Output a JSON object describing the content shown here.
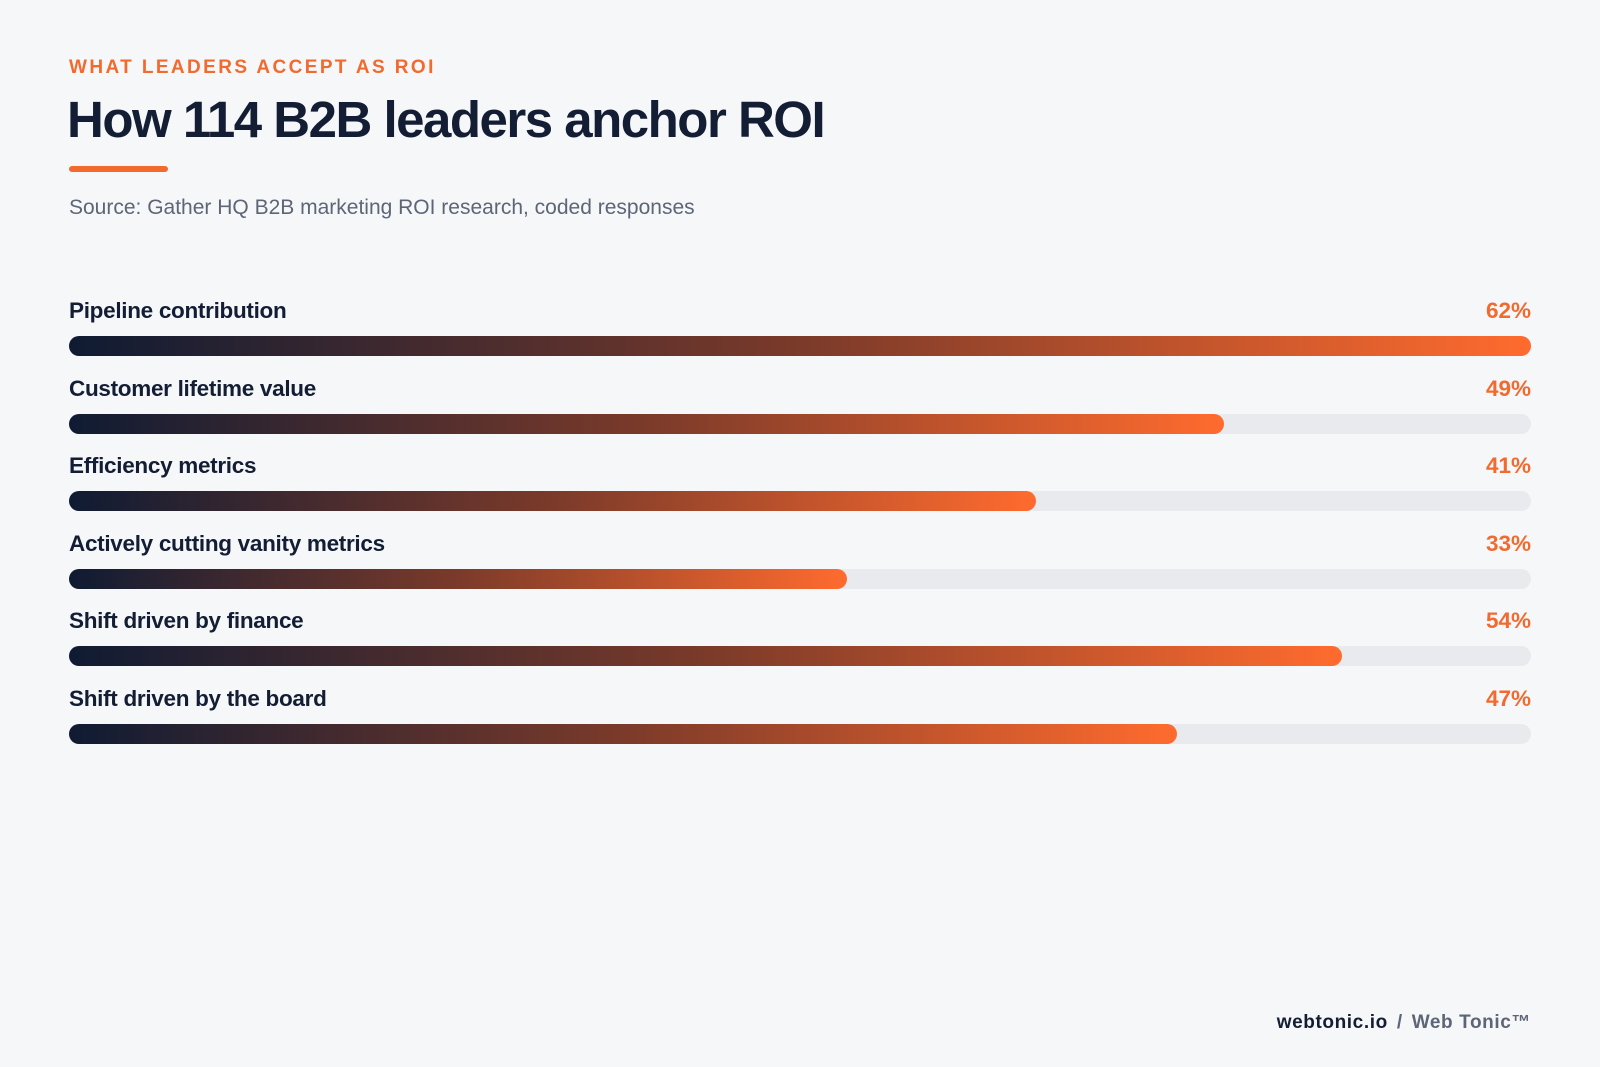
{
  "header": {
    "eyebrow": "WHAT LEADERS ACCEPT AS ROI",
    "title": "How 114 B2B leaders anchor ROI",
    "source": "Source: Gather HQ B2B marketing ROI research, coded responses"
  },
  "colors": {
    "accent": "#f26a2e",
    "ink": "#131d33",
    "muted": "#5d6677",
    "track": "#e8eaee",
    "gradient_start": "#0f1b33",
    "gradient_end": "#ff6b2e"
  },
  "chart_data": {
    "type": "bar",
    "orientation": "horizontal",
    "categories": [
      "Pipeline contribution",
      "Customer lifetime value",
      "Efficiency metrics",
      "Actively cutting vanity metrics",
      "Shift driven by finance",
      "Shift driven by the board"
    ],
    "values": [
      62,
      49,
      41,
      33,
      54,
      47
    ],
    "value_labels": [
      "62%",
      "49%",
      "41%",
      "33%",
      "54%",
      "47%"
    ],
    "xlim": [
      0,
      62
    ],
    "grid": false,
    "legend": "none"
  },
  "footer": {
    "domain": "webtonic.io",
    "separator": "/",
    "brand": "Web Tonic™"
  }
}
